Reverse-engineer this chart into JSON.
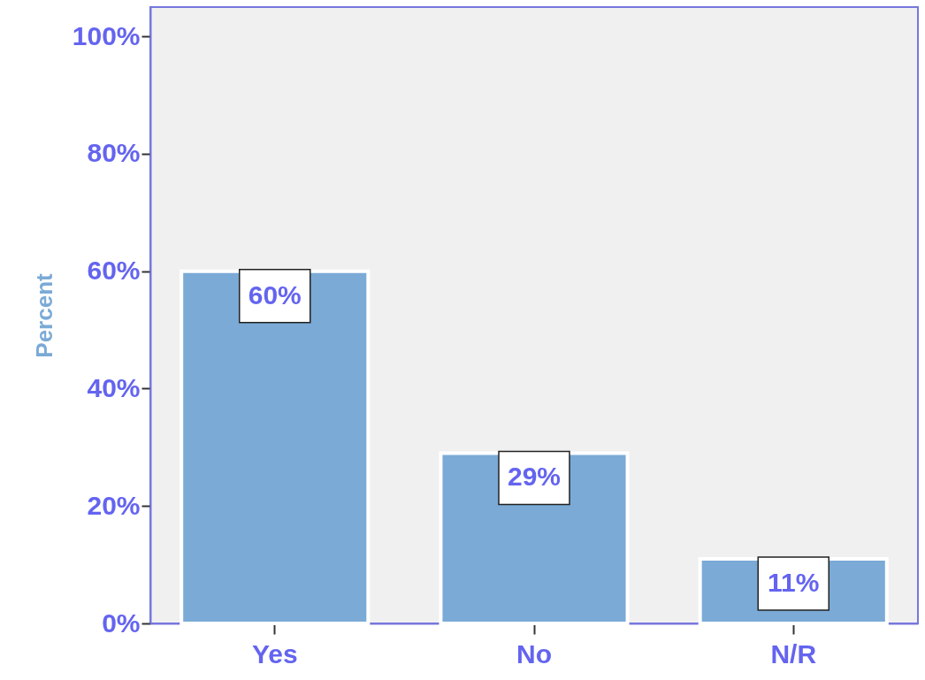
{
  "chart_data": {
    "type": "bar",
    "ylabel": "Percent",
    "categories": [
      "Yes",
      "No",
      "N/R"
    ],
    "values": [
      60,
      29,
      11
    ],
    "value_labels": [
      "60%",
      "29%",
      "11%"
    ],
    "color": "#7baad6",
    "ylim": [
      0,
      105
    ],
    "yticks": [
      {
        "value": 0,
        "label": "0%"
      },
      {
        "value": 20,
        "label": "20%"
      },
      {
        "value": 40,
        "label": "40%"
      },
      {
        "value": 60,
        "label": "60%"
      },
      {
        "value": 80,
        "label": "80%"
      },
      {
        "value": 100,
        "label": "100%"
      }
    ],
    "grid": false
  }
}
